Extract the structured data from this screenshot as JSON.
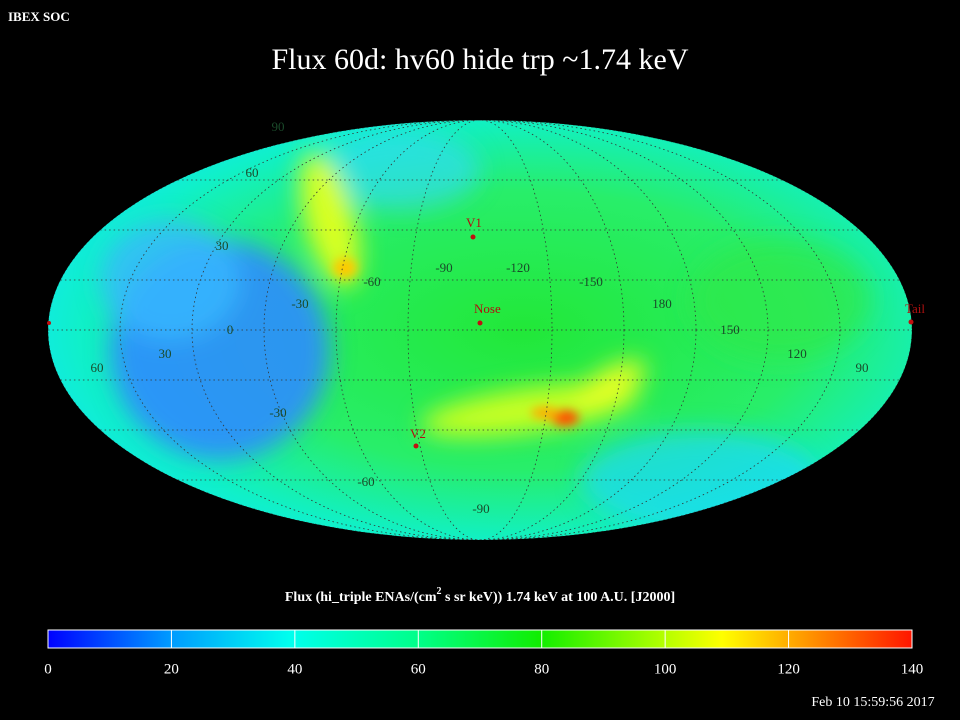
{
  "header": {
    "source": "IBEX SOC",
    "title": "Flux   60d: hv60 hide trp ~1.74 keV"
  },
  "map": {
    "grid_labels": [
      "90",
      "60",
      "30",
      "0",
      "-30",
      "-60",
      "-90",
      "-30",
      "-60",
      "-90",
      "-120",
      "-150",
      "180",
      "150",
      "120",
      "90",
      "60",
      "30"
    ],
    "markers": [
      "V1",
      "Nose",
      "V2",
      "Tail"
    ]
  },
  "colorbar": {
    "label_before": "Flux (hi_triple ENAs/(cm",
    "label_sup": "2",
    "label_after": " s sr keV))  1.74 keV at 100 A.U. [J2000]",
    "range": [
      0,
      140
    ],
    "ticks": [
      0,
      20,
      40,
      60,
      80,
      100,
      120,
      140
    ]
  },
  "footer": {
    "timestamp": "Feb 10 15:59:56 2017"
  }
}
